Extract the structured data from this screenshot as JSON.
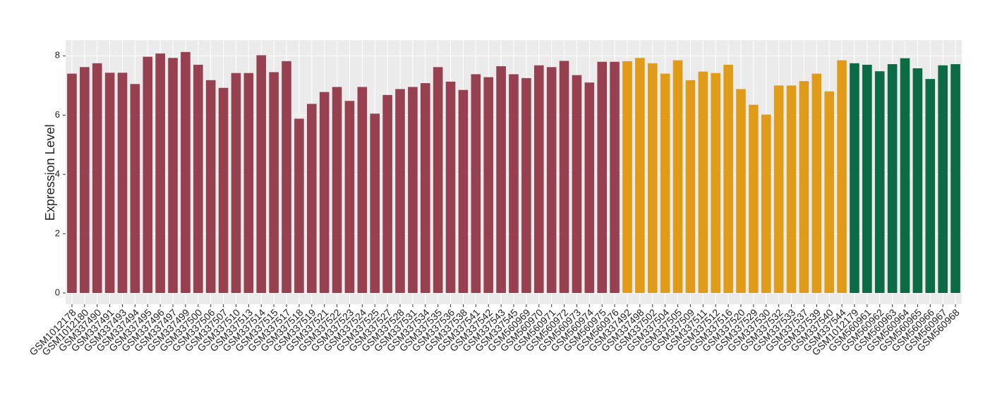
{
  "chart_data": {
    "type": "bar",
    "y_label": "Expression Level",
    "categories": [
      "GSM1012178",
      "GSM1012180",
      "GSM337490",
      "GSM337491",
      "GSM337493",
      "GSM337494",
      "GSM337495",
      "GSM337496",
      "GSM337497",
      "GSM337499",
      "GSM337500",
      "GSM337506",
      "GSM337507",
      "GSM337510",
      "GSM337513",
      "GSM337514",
      "GSM337515",
      "GSM337517",
      "GSM337518",
      "GSM337519",
      "GSM337521",
      "GSM337522",
      "GSM337523",
      "GSM337524",
      "GSM337525",
      "GSM337527",
      "GSM337528",
      "GSM337531",
      "GSM337534",
      "GSM337535",
      "GSM337536",
      "GSM337538",
      "GSM337541",
      "GSM337542",
      "GSM337543",
      "GSM337545",
      "GSM560969",
      "GSM560970",
      "GSM560971",
      "GSM560972",
      "GSM560973",
      "GSM560974",
      "GSM560975",
      "GSM560976",
      "GSM337492",
      "GSM337498",
      "GSM337502",
      "GSM337504",
      "GSM337505",
      "GSM337509",
      "GSM337511",
      "GSM337512",
      "GSM337516",
      "GSM337520",
      "GSM337529",
      "GSM337530",
      "GSM337532",
      "GSM337533",
      "GSM337537",
      "GSM337539",
      "GSM337540",
      "GSM337544",
      "GSM1012179",
      "GSM560961",
      "GSM560962",
      "GSM560963",
      "GSM560964",
      "GSM560965",
      "GSM560966",
      "GSM560967",
      "GSM560968"
    ],
    "values": [
      7.4,
      7.62,
      7.75,
      7.43,
      7.43,
      7.05,
      7.97,
      8.08,
      7.93,
      8.13,
      7.7,
      7.18,
      6.92,
      7.42,
      7.42,
      8.02,
      7.45,
      7.82,
      5.88,
      6.38,
      6.78,
      6.95,
      6.48,
      6.95,
      6.05,
      6.68,
      6.88,
      6.95,
      7.08,
      7.62,
      7.13,
      6.85,
      7.38,
      7.28,
      7.65,
      7.38,
      7.25,
      7.68,
      7.62,
      7.83,
      7.35,
      7.1,
      7.8,
      7.8,
      7.82,
      7.93,
      7.75,
      7.4,
      7.85,
      7.18,
      7.47,
      7.42,
      7.7,
      6.88,
      6.35,
      6.02,
      7.0,
      7.0,
      7.15,
      7.4,
      6.8,
      7.85,
      7.75,
      7.7,
      7.48,
      7.72,
      7.92,
      7.58,
      7.22,
      7.68,
      7.72
    ],
    "colors": [
      "#964050",
      "#964050",
      "#964050",
      "#964050",
      "#964050",
      "#964050",
      "#964050",
      "#964050",
      "#964050",
      "#964050",
      "#964050",
      "#964050",
      "#964050",
      "#964050",
      "#964050",
      "#964050",
      "#964050",
      "#964050",
      "#964050",
      "#964050",
      "#964050",
      "#964050",
      "#964050",
      "#964050",
      "#964050",
      "#964050",
      "#964050",
      "#964050",
      "#964050",
      "#964050",
      "#964050",
      "#964050",
      "#964050",
      "#964050",
      "#964050",
      "#964050",
      "#964050",
      "#964050",
      "#964050",
      "#964050",
      "#964050",
      "#964050",
      "#964050",
      "#964050",
      "#e09c18",
      "#e09c18",
      "#e09c18",
      "#e09c18",
      "#e09c18",
      "#e09c18",
      "#e09c18",
      "#e09c18",
      "#e09c18",
      "#e09c18",
      "#e09c18",
      "#e09c18",
      "#e09c18",
      "#e09c18",
      "#e09c18",
      "#e09c18",
      "#e09c18",
      "#e09c18",
      "#0a6b45",
      "#0a6b45",
      "#0a6b45",
      "#0a6b45",
      "#0a6b45",
      "#0a6b45",
      "#0a6b45",
      "#0a6b45",
      "#0a6b45"
    ],
    "ylim": [
      -0.38,
      8.53
    ],
    "yticks": [
      0,
      2,
      4,
      6,
      8
    ],
    "grid": true
  }
}
